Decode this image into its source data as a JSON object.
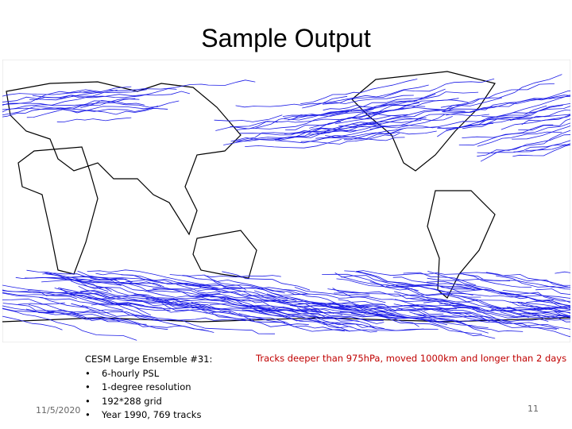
{
  "slide": {
    "title": "Sample Output",
    "description": {
      "heading": "CESM Large Ensemble #31:",
      "bullets": [
        "6-hourly PSL",
        "1-degree resolution",
        "192*288 grid",
        "Year 1990, 769 tracks"
      ]
    },
    "caption": "Tracks deeper than 975hPa, moved 1000km and longer than 2 days",
    "date": "11/5/2020",
    "page_number": "11"
  }
}
